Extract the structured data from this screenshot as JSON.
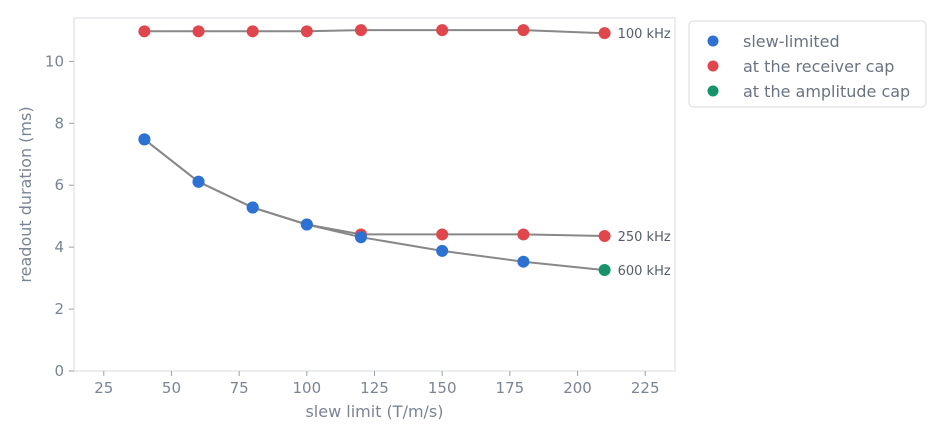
{
  "chart_data": {
    "type": "line",
    "xlabel": "slew limit (T/m/s)",
    "ylabel": "readout duration (ms)",
    "xlim": [
      14,
      236
    ],
    "ylim": [
      0,
      11.4
    ],
    "xticks": [
      25,
      50,
      75,
      100,
      125,
      150,
      175,
      200,
      225
    ],
    "yticks": [
      0,
      2,
      4,
      6,
      8,
      10
    ],
    "grid": false,
    "legend_position": "top-right-outside",
    "line_color": "#888888",
    "categories_legend": [
      {
        "name": "slew-limited",
        "color": "#2d72d2"
      },
      {
        "name": "at the receiver cap",
        "color": "#e0474c"
      },
      {
        "name": "at the amplitude cap",
        "color": "#17936b"
      }
    ],
    "series": [
      {
        "name": "100 kHz",
        "x": [
          40,
          60,
          80,
          100,
          120,
          150,
          180,
          210
        ],
        "y": [
          10.97,
          10.97,
          10.97,
          10.97,
          11.01,
          11.01,
          11.01,
          10.91
        ],
        "status": [
          "receiver",
          "receiver",
          "receiver",
          "receiver",
          "receiver",
          "receiver",
          "receiver",
          "receiver"
        ]
      },
      {
        "name": "250 kHz",
        "x": [
          40,
          60,
          80,
          100,
          120,
          150,
          180,
          210
        ],
        "y": [
          7.48,
          6.11,
          5.28,
          4.73,
          4.41,
          4.41,
          4.41,
          4.36
        ],
        "status": [
          "slew",
          "slew",
          "slew",
          "slew",
          "receiver",
          "receiver",
          "receiver",
          "receiver"
        ]
      },
      {
        "name": "600 kHz",
        "x": [
          40,
          60,
          80,
          100,
          120,
          150,
          180,
          210
        ],
        "y": [
          7.48,
          6.11,
          5.28,
          4.73,
          4.32,
          3.88,
          3.53,
          3.26
        ],
        "status": [
          "slew",
          "slew",
          "slew",
          "slew",
          "slew",
          "slew",
          "slew",
          "amplitude"
        ]
      }
    ]
  }
}
